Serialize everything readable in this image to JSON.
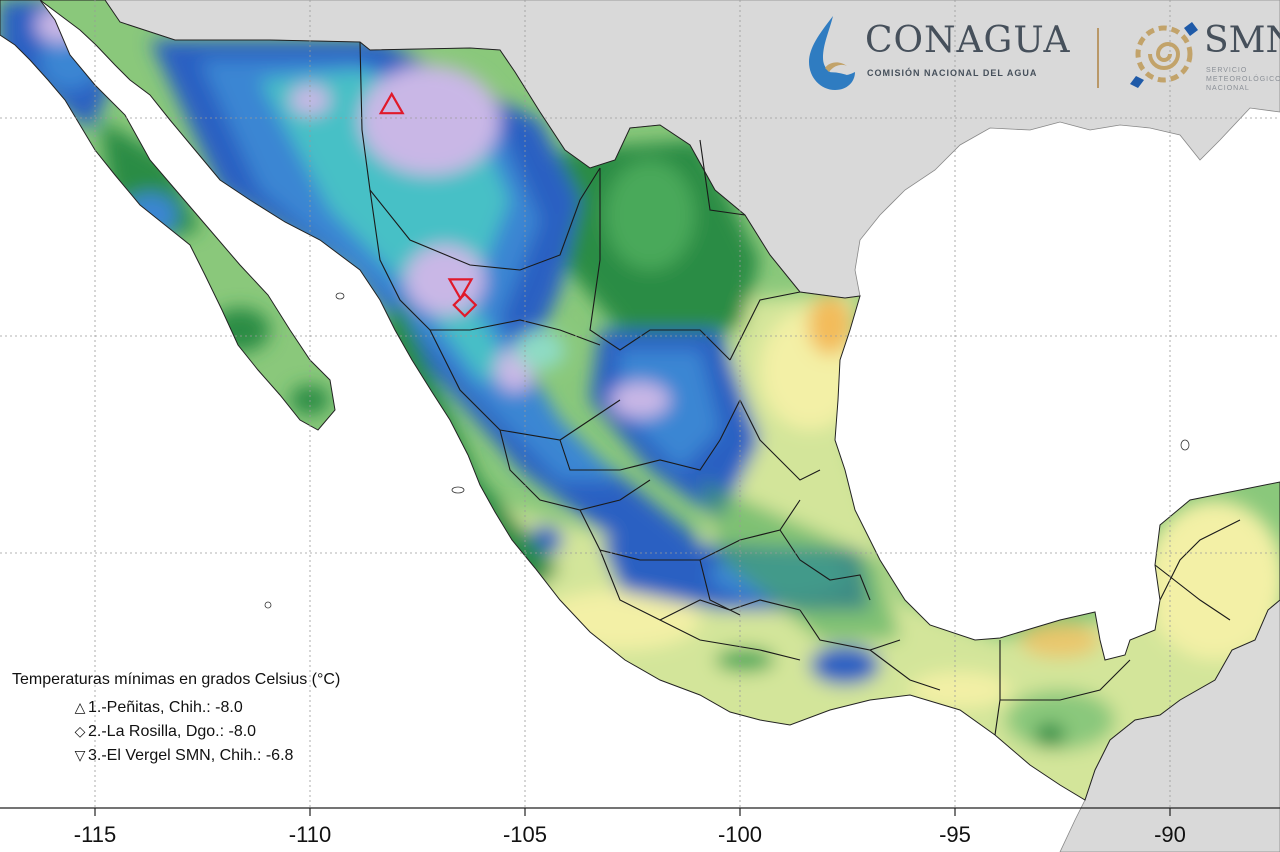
{
  "map": {
    "colors": {
      "land_outside": "#d9d9d9",
      "water": "#ffffff",
      "lavender": "#c9b7e6",
      "blue_dark": "#2b60c2",
      "blue": "#3a86d3",
      "cyan": "#46c0c6",
      "teal_light": "#8edbc4",
      "green_dark": "#2a8c45",
      "green": "#48a95a",
      "green_light": "#8ac87b",
      "yellowgreen": "#d3e59a",
      "yellow": "#f3f0a6",
      "orange": "#f3bb5a",
      "marker": "#e0192a"
    },
    "x_axis": {
      "ticks": [
        "-115",
        "-110",
        "-105",
        "-100",
        "-95",
        "-90"
      ]
    },
    "markers": [
      {
        "symbol": "triangle-up",
        "lon": -108.1,
        "lat": 30.3
      },
      {
        "symbol": "diamond",
        "lon": -106.4,
        "lat": 25.7
      },
      {
        "symbol": "triangle-down",
        "lon": -106.5,
        "lat": 26.1
      }
    ]
  },
  "legend": {
    "title": "Temperaturas mínimas en grados Celsius (°C)",
    "items": [
      {
        "symbol": "△",
        "label": "1.-Peñitas, Chih.: -8.0"
      },
      {
        "symbol": "◇",
        "label": "2.-La Rosilla, Dgo.: -8.0"
      },
      {
        "symbol": "▽",
        "label": "3.-El Vergel SMN, Chih.: -6.8"
      }
    ]
  },
  "logos": {
    "conagua": {
      "name": "CONAGUA",
      "subtitle": "COMISIÓN NACIONAL DEL AGUA",
      "color": "#46505b"
    },
    "smn": {
      "name": "SMN",
      "subtitle": "SERVICIO\nMETEOROLÓGICO\nNACIONAL",
      "color": "#46505b"
    }
  }
}
